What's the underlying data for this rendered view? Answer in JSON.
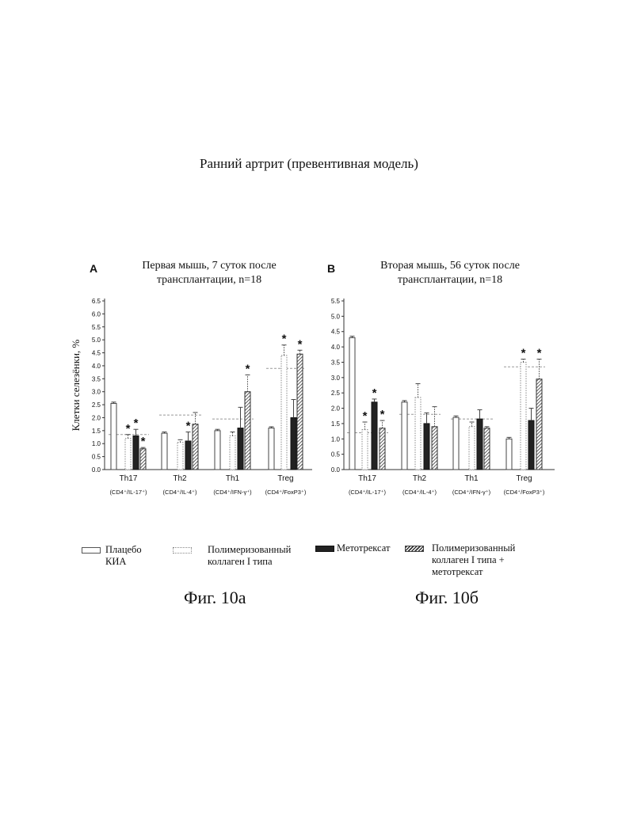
{
  "page_title": "Ранний артрит (превентивная модель)",
  "colors": {
    "ink": "#111111",
    "dark_bar": "#222222",
    "gridline": "#999999"
  },
  "chart_data": [
    {
      "type": "bar",
      "panel_letter": "A",
      "title_lines": [
        "Первая мышь, 7 суток после",
        "трансплантации, n=18"
      ],
      "ylabel": "Клетки селезёнки, %",
      "ylim": [
        0,
        6.5
      ],
      "yticks": [
        "0.0",
        "0.5",
        "1.0",
        "1.5",
        "2.0",
        "2.5",
        "3.0",
        "3.5",
        "4.0",
        "4.5",
        "5.0",
        "5.5",
        "6.0",
        "6.5"
      ],
      "categories": [
        "Th17",
        "Th2",
        "Th1",
        "Treg"
      ],
      "category_sublabels": [
        "(CD4⁺/IL-17⁺)",
        "(CD4⁺/IL-4⁺)",
        "(CD4⁺/IFN-γ⁺)",
        "(CD4⁺/FoxP3⁺)"
      ],
      "series": [
        {
          "name": "Плацебо КИА",
          "style": "plain",
          "values": [
            2.55,
            1.4,
            1.5,
            1.6
          ],
          "errors": [
            0.05,
            0.05,
            0.05,
            0.05
          ]
        },
        {
          "name": "Полимеризованный коллаген I типа",
          "style": "dashed",
          "values": [
            1.2,
            1.05,
            1.3,
            4.4
          ],
          "errors": [
            0.15,
            0.1,
            0.15,
            0.4
          ]
        },
        {
          "name": "Метотрексат",
          "style": "dark",
          "values": [
            1.3,
            1.1,
            1.6,
            2.0
          ],
          "errors": [
            0.25,
            0.35,
            0.8,
            0.7
          ]
        },
        {
          "name": "Полимеризованный коллаген I типа + метотрексат",
          "style": "hatched",
          "values": [
            0.8,
            1.75,
            3.0,
            4.45
          ],
          "errors": [
            0.05,
            0.45,
            0.65,
            0.15
          ]
        }
      ],
      "reference_lines": [
        1.35,
        2.1,
        1.95,
        3.9
      ],
      "significance": [
        [
          false,
          true,
          true,
          true
        ],
        [
          false,
          false,
          true,
          false
        ],
        [
          false,
          false,
          false,
          true
        ],
        [
          false,
          true,
          false,
          true
        ]
      ]
    },
    {
      "type": "bar",
      "panel_letter": "B",
      "title_lines": [
        "Вторая мышь, 56 суток после",
        "трансплантации, n=18"
      ],
      "ylabel": "",
      "ylim": [
        0,
        5.5
      ],
      "yticks": [
        "0.0",
        "0.5",
        "1.0",
        "1.5",
        "2.0",
        "2.5",
        "3.0",
        "3.5",
        "4.0",
        "4.5",
        "5.0",
        "5.5"
      ],
      "categories": [
        "Th17",
        "Th2",
        "Th1",
        "Treg"
      ],
      "category_sublabels": [
        "(CD4⁺/IL-17⁺)",
        "(CD4⁺/IL-4⁺)",
        "(CD4⁺/IFN-γ⁺)",
        "(CD4⁺/FoxP3⁺)"
      ],
      "series": [
        {
          "name": "Плацебо КИА",
          "style": "plain",
          "values": [
            4.3,
            2.2,
            1.7,
            1.0
          ],
          "errors": [
            0.05,
            0.05,
            0.05,
            0.05
          ]
        },
        {
          "name": "Полимеризованный коллаген I типа",
          "style": "dashed",
          "values": [
            1.3,
            2.35,
            1.4,
            3.5
          ],
          "errors": [
            0.25,
            0.45,
            0.15,
            0.1
          ]
        },
        {
          "name": "Метотрексат",
          "style": "dark",
          "values": [
            2.2,
            1.5,
            1.65,
            1.6
          ],
          "errors": [
            0.1,
            0.35,
            0.3,
            0.4
          ]
        },
        {
          "name": "Полимеризованный коллаген I типа + метотрексат",
          "style": "hatched",
          "values": [
            1.35,
            1.4,
            1.35,
            2.95
          ],
          "errors": [
            0.25,
            0.65,
            0.05,
            0.65
          ]
        }
      ],
      "reference_lines": [
        1.2,
        1.8,
        1.65,
        3.35
      ],
      "significance": [
        [
          false,
          true,
          true,
          true
        ],
        [
          false,
          false,
          false,
          false
        ],
        [
          false,
          false,
          false,
          false
        ],
        [
          false,
          true,
          false,
          true
        ]
      ]
    }
  ],
  "legend": [
    {
      "lines": [
        "Плацебо",
        "КИА"
      ],
      "style": "plain"
    },
    {
      "lines": [
        "Полимеризованный",
        "коллаген I типа"
      ],
      "style": "dashed"
    },
    {
      "lines": [
        "Метотрексат"
      ],
      "style": "dark"
    },
    {
      "lines": [
        "Полимеризованный",
        "коллаген I типа +",
        "метотрексат"
      ],
      "style": "hatched"
    }
  ],
  "captions": [
    "Фиг. 10а",
    "Фиг. 10б"
  ],
  "significance_mark": "*"
}
